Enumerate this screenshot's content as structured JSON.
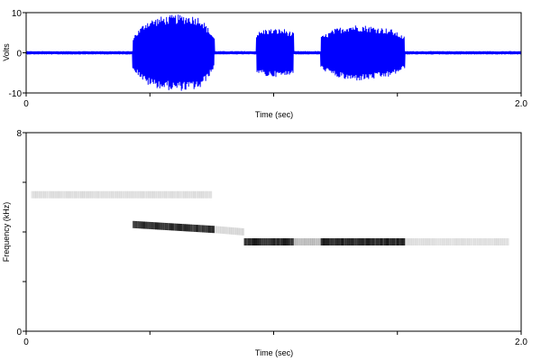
{
  "chart_data": [
    {
      "type": "line",
      "name": "waveform",
      "xlabel": "Time (sec)",
      "ylabel": "Volts",
      "xlim": [
        0,
        2.0
      ],
      "ylim": [
        -10,
        10
      ],
      "x_ticks": [
        0,
        0.5,
        1.0,
        1.5,
        2.0
      ],
      "x_tick_labels": [
        "0",
        "",
        "",
        "",
        "2.0"
      ],
      "y_ticks": [
        -10,
        0,
        10
      ],
      "y_tick_labels": [
        "-10",
        "0",
        "10"
      ],
      "color": "#0000ff",
      "noise_amplitude": 0.4,
      "bursts": [
        {
          "start": 0.43,
          "end": 0.76,
          "amplitude": [
            4,
            8,
            9,
            9.5,
            9.5,
            9,
            4
          ]
        },
        {
          "start": 0.93,
          "end": 1.08,
          "amplitude": [
            5,
            6,
            6,
            6,
            5
          ]
        },
        {
          "start": 1.19,
          "end": 1.53,
          "amplitude": [
            4,
            6,
            7,
            7,
            6.5,
            6,
            4
          ]
        }
      ]
    },
    {
      "type": "heatmap",
      "name": "spectrogram",
      "xlabel": "Time (sec)",
      "ylabel": "Frequency (kHz)",
      "xlim": [
        0,
        2.0
      ],
      "ylim": [
        0,
        8
      ],
      "x_ticks": [
        0,
        0.5,
        1.0,
        1.5,
        2.0
      ],
      "x_tick_labels": [
        "0",
        "",
        "",
        "",
        "2.0"
      ],
      "y_ticks": [
        0,
        2,
        4,
        6,
        8
      ],
      "y_tick_labels": [
        "0",
        "",
        "",
        "",
        "8"
      ],
      "color": "#000000",
      "segments": [
        {
          "t0": 0.43,
          "t1": 0.76,
          "f0": 4.3,
          "f1": 4.1,
          "intensity": 0.85
        },
        {
          "t0": 0.88,
          "t1": 1.08,
          "f0": 3.6,
          "f1": 3.6,
          "intensity": 0.9
        },
        {
          "t0": 1.19,
          "t1": 1.53,
          "f0": 3.6,
          "f1": 3.6,
          "intensity": 0.9
        },
        {
          "t0": 1.08,
          "t1": 1.19,
          "f0": 3.6,
          "f1": 3.6,
          "intensity": 0.25
        },
        {
          "t0": 1.53,
          "t1": 1.95,
          "f0": 3.6,
          "f1": 3.6,
          "intensity": 0.12
        },
        {
          "t0": 0.76,
          "t1": 0.88,
          "f0": 4.1,
          "f1": 4.0,
          "intensity": 0.15
        },
        {
          "t0": 0.02,
          "t1": 0.75,
          "f0": 5.5,
          "f1": 5.5,
          "intensity": 0.12
        }
      ]
    }
  ]
}
